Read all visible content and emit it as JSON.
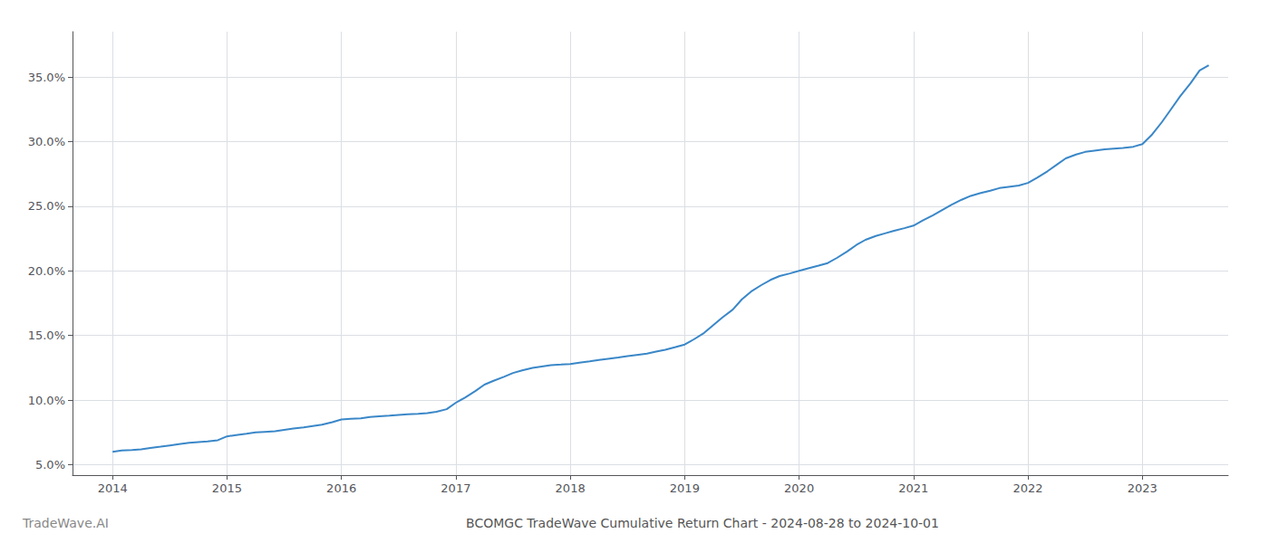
{
  "chart_data": {
    "type": "line",
    "title": "BCOMGC TradeWave Cumulative Return Chart - 2024-08-28 to 2024-10-01",
    "annotations": [
      "TradeWave.AI"
    ],
    "color": "#3a87c8",
    "grid": true,
    "x": [
      2014.0,
      2014.08,
      2014.17,
      2014.25,
      2014.33,
      2014.42,
      2014.5,
      2014.58,
      2014.67,
      2014.75,
      2014.83,
      2014.92,
      2015.0,
      2015.08,
      2015.17,
      2015.25,
      2015.33,
      2015.42,
      2015.5,
      2015.58,
      2015.67,
      2015.75,
      2015.83,
      2015.92,
      2016.0,
      2016.08,
      2016.17,
      2016.25,
      2016.33,
      2016.42,
      2016.5,
      2016.58,
      2016.67,
      2016.75,
      2016.83,
      2016.92,
      2017.0,
      2017.08,
      2017.17,
      2017.25,
      2017.33,
      2017.42,
      2017.5,
      2017.58,
      2017.67,
      2017.75,
      2017.83,
      2017.92,
      2018.0,
      2018.08,
      2018.17,
      2018.25,
      2018.33,
      2018.42,
      2018.5,
      2018.58,
      2018.67,
      2018.75,
      2018.83,
      2018.92,
      2019.0,
      2019.08,
      2019.17,
      2019.25,
      2019.33,
      2019.42,
      2019.5,
      2019.58,
      2019.67,
      2019.75,
      2019.83,
      2019.92,
      2020.0,
      2020.08,
      2020.17,
      2020.25,
      2020.33,
      2020.42,
      2020.5,
      2020.58,
      2020.67,
      2020.75,
      2020.83,
      2020.92,
      2021.0,
      2021.08,
      2021.17,
      2021.25,
      2021.33,
      2021.42,
      2021.5,
      2021.58,
      2021.67,
      2021.75,
      2021.83,
      2021.92,
      2022.0,
      2022.08,
      2022.17,
      2022.25,
      2022.33,
      2022.42,
      2022.5,
      2022.58,
      2022.67,
      2022.75,
      2022.83,
      2022.92,
      2023.0,
      2023.08,
      2023.17,
      2023.25,
      2023.33,
      2023.42,
      2023.5,
      2023.58
    ],
    "values": [
      6.0,
      6.1,
      6.15,
      6.2,
      6.3,
      6.4,
      6.5,
      6.6,
      6.7,
      6.75,
      6.8,
      6.9,
      7.2,
      7.3,
      7.4,
      7.5,
      7.55,
      7.6,
      7.7,
      7.8,
      7.9,
      8.0,
      8.1,
      8.3,
      8.5,
      8.55,
      8.6,
      8.7,
      8.75,
      8.8,
      8.85,
      8.9,
      8.95,
      9.0,
      9.1,
      9.3,
      9.8,
      10.2,
      10.7,
      11.2,
      11.5,
      11.8,
      12.1,
      12.3,
      12.5,
      12.6,
      12.7,
      12.75,
      12.8,
      12.9,
      13.0,
      13.1,
      13.2,
      13.3,
      13.4,
      13.5,
      13.6,
      13.75,
      13.9,
      14.1,
      14.3,
      14.7,
      15.2,
      15.8,
      16.4,
      17.0,
      17.8,
      18.4,
      18.9,
      19.3,
      19.6,
      19.8,
      20.0,
      20.2,
      20.4,
      20.6,
      21.0,
      21.5,
      22.0,
      22.4,
      22.7,
      22.9,
      23.1,
      23.3,
      23.5,
      23.9,
      24.3,
      24.7,
      25.1,
      25.5,
      25.8,
      26.0,
      26.2,
      26.4,
      26.5,
      26.6,
      26.8,
      27.2,
      27.7,
      28.2,
      28.7,
      29.0,
      29.2,
      29.3,
      29.4,
      29.45,
      29.5,
      29.6,
      29.8,
      30.5,
      31.5,
      32.5,
      33.5,
      34.5,
      35.5,
      35.9
    ],
    "xlim": [
      2013.65,
      2023.75
    ],
    "xticks": [
      2014,
      2015,
      2016,
      2017,
      2018,
      2019,
      2020,
      2021,
      2022,
      2023
    ],
    "ylim": [
      4.2,
      38.5
    ],
    "yticks": [
      {
        "value": 5.0,
        "label": "5.0%"
      },
      {
        "value": 10.0,
        "label": "10.0%"
      },
      {
        "value": 15.0,
        "label": "15.0%"
      },
      {
        "value": 20.0,
        "label": "20.0%"
      },
      {
        "value": 25.0,
        "label": "25.0%"
      },
      {
        "value": 30.0,
        "label": "30.0%"
      },
      {
        "value": 35.0,
        "label": "35.0%"
      }
    ]
  }
}
